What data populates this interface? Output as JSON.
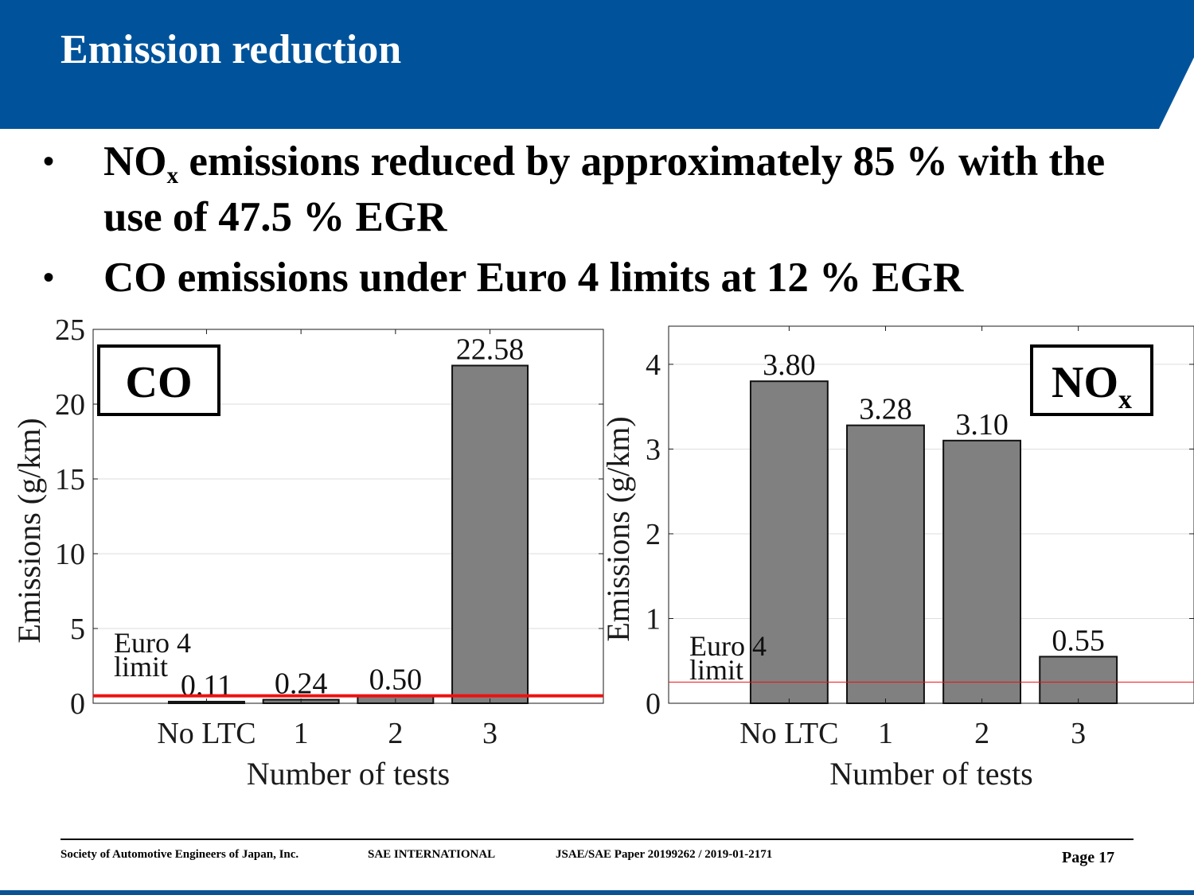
{
  "slide": {
    "title": "Emission reduction",
    "banner_color": "#00539a",
    "bullets": [
      {
        "prefix": "NO",
        "sub": "x",
        "rest": " emissions reduced by approximately 85 % with the use of 47.5 % EGR"
      },
      {
        "text": "CO emissions under Euro 4 limits at 12 % EGR"
      }
    ]
  },
  "footer": {
    "org": "Society of Automotive Engineers of Japan, Inc.",
    "sae": "SAE INTERNATIONAL",
    "paper": "JSAE/SAE  Paper 20199262 / 2019-01-2171",
    "page": "Page 17"
  },
  "chart_data": [
    {
      "type": "bar",
      "id": "co",
      "label_main": "CO",
      "label_sub": "",
      "categories": [
        "No LTC",
        "1",
        "2",
        "3"
      ],
      "values": [
        0.11,
        0.24,
        0.5,
        22.58
      ],
      "value_labels": [
        "0.11",
        "0.24",
        "0.50",
        "22.58"
      ],
      "xlabel": "Number of tests",
      "ylabel": "Emissions (g/km)",
      "ylim": [
        0,
        25
      ],
      "yticks": [
        0,
        5,
        10,
        15,
        20,
        25
      ],
      "limit_value": 0.5,
      "limit_label": [
        "Euro 4",
        "limit"
      ],
      "bar_color": "#808080",
      "limit_color": "#ee1111",
      "grid": true,
      "label_box": "top-left"
    },
    {
      "type": "bar",
      "id": "nox",
      "label_main": "NO",
      "label_sub": "x",
      "categories": [
        "No LTC",
        "1",
        "2",
        "3"
      ],
      "values": [
        3.8,
        3.28,
        3.1,
        0.55
      ],
      "value_labels": [
        "3.80",
        "3.28",
        "3.10",
        "0.55"
      ],
      "xlabel": "Number of tests",
      "ylabel": "Emissions (g/km)",
      "ylim": [
        0,
        4.45
      ],
      "yticks": [
        0,
        1,
        2,
        3,
        4
      ],
      "limit_value": 0.25,
      "limit_label": [
        "Euro 4",
        "limit"
      ],
      "bar_color": "#808080",
      "limit_color": "#ee1111",
      "grid": true,
      "label_box": "top-right"
    }
  ]
}
